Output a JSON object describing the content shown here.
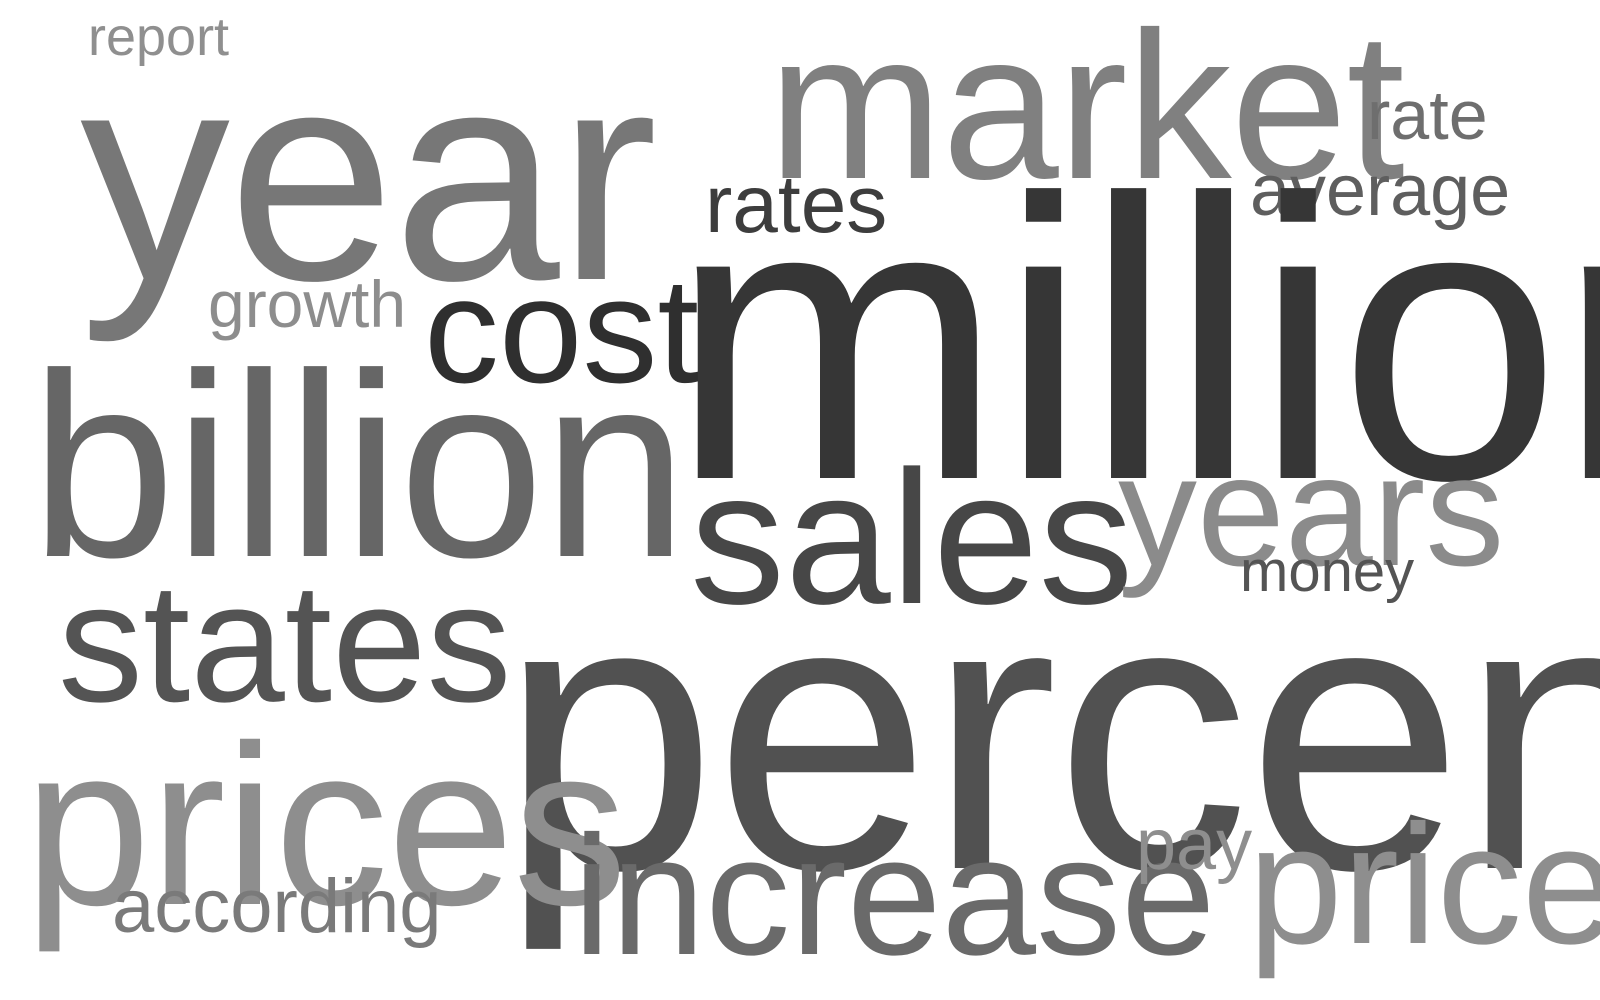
{
  "word_cloud": {
    "words": {
      "report": "report",
      "year": "year",
      "market": "market",
      "rate": "rate",
      "average": "average",
      "rates": "rates",
      "growth": "growth",
      "cost": "cost",
      "million": "million",
      "billion": "billion",
      "sales": "sales",
      "years": "years",
      "money": "money",
      "states": "states",
      "percent": "percent",
      "prices": "prices",
      "according": "according",
      "increase": "increase",
      "pay": "pay",
      "price": "price"
    },
    "colors": {
      "background": "#ffffff",
      "darkest": "#2f2f2f",
      "lightest": "#8f8f8f"
    }
  }
}
